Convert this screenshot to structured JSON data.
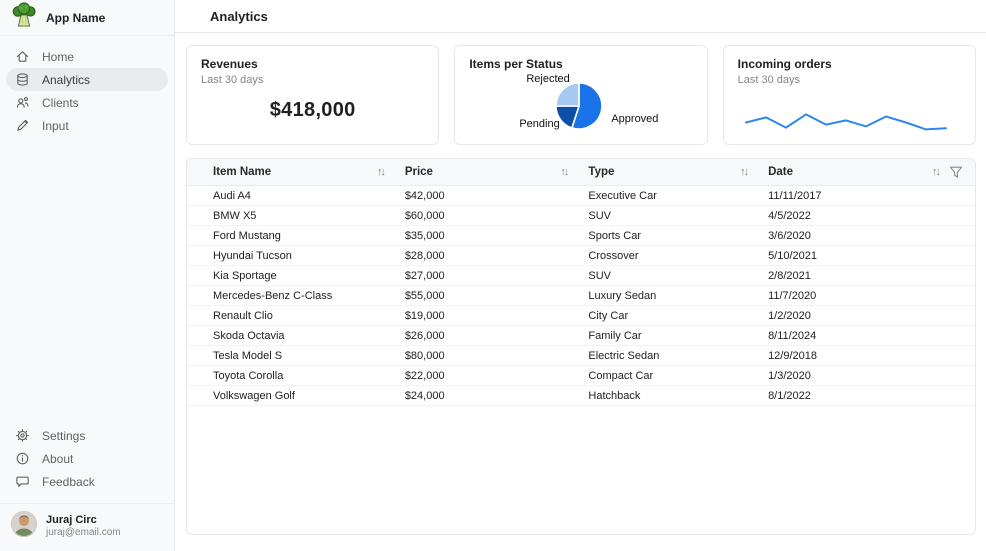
{
  "app": {
    "name": "App Name",
    "logo": "broccoli-logo"
  },
  "sidebar": {
    "items": [
      {
        "label": "Home",
        "icon": "home-icon",
        "selected": false
      },
      {
        "label": "Analytics",
        "icon": "analytics-icon",
        "selected": true
      },
      {
        "label": "Clients",
        "icon": "clients-icon",
        "selected": false
      },
      {
        "label": "Input",
        "icon": "input-icon",
        "selected": false
      }
    ],
    "bottom_items": [
      {
        "label": "Settings",
        "icon": "gear-icon"
      },
      {
        "label": "About",
        "icon": "info-icon"
      },
      {
        "label": "Feedback",
        "icon": "feedback-icon"
      }
    ],
    "user": {
      "name": "Juraj Circ",
      "email": "juraj@email.com"
    }
  },
  "header": {
    "title": "Analytics"
  },
  "cards": {
    "revenues": {
      "title": "Revenues",
      "subtitle": "Last 30 days",
      "value": "$418,000"
    },
    "items_per_status": {
      "title": "Items per Status"
    },
    "incoming_orders": {
      "title": "Incoming orders",
      "subtitle": "Last 30 days"
    }
  },
  "chart_data": [
    {
      "type": "pie",
      "title": "Items per Status",
      "labels": [
        "Approved",
        "Pending",
        "Rejected"
      ],
      "values": [
        55,
        20,
        25
      ],
      "colors": [
        "#1a73e8",
        "#0d4fa8",
        "#a7c8f0"
      ],
      "start_angle_deg": 0,
      "legend_position": "around-slices"
    },
    {
      "type": "line",
      "title": "Incoming orders",
      "subtitle": "Last 30 days",
      "x": [
        1,
        2,
        3,
        4,
        5,
        6,
        7,
        8,
        9,
        10,
        11
      ],
      "values": [
        45,
        62,
        28,
        72,
        38,
        52,
        32,
        65,
        45,
        22,
        26
      ],
      "color": "#2e86ee",
      "ylim": [
        0,
        100
      ],
      "grid": false
    }
  ],
  "table": {
    "columns": [
      "Item Name",
      "Price",
      "Type",
      "Date"
    ],
    "rows": [
      [
        "Audi A4",
        "$42,000",
        "Executive Car",
        "11/11/2017"
      ],
      [
        "BMW X5",
        "$60,000",
        "SUV",
        "4/5/2022"
      ],
      [
        "Ford Mustang",
        "$35,000",
        "Sports Car",
        "3/6/2020"
      ],
      [
        "Hyundai Tucson",
        "$28,000",
        "Crossover",
        "5/10/2021"
      ],
      [
        "Kia Sportage",
        "$27,000",
        "SUV",
        "2/8/2021"
      ],
      [
        "Mercedes-Benz C-Class",
        "$55,000",
        "Luxury Sedan",
        "11/7/2020"
      ],
      [
        "Renault Clio",
        "$19,000",
        "City Car",
        "1/2/2020"
      ],
      [
        "Skoda Octavia",
        "$26,000",
        "Family Car",
        "8/11/2024"
      ],
      [
        "Tesla Model S",
        "$80,000",
        "Electric Sedan",
        "12/9/2018"
      ],
      [
        "Toyota Corolla",
        "$22,000",
        "Compact Car",
        "1/3/2020"
      ],
      [
        "Volkswagen Golf",
        "$24,000",
        "Hatchback",
        "8/1/2022"
      ]
    ]
  },
  "icons": {
    "sort_glyph": "↑↓"
  },
  "colors": {
    "accent": "#1a73e8",
    "line": "#2e86ee",
    "sidebar_bg": "#f8f9fa",
    "border": "#e7e8ea"
  }
}
